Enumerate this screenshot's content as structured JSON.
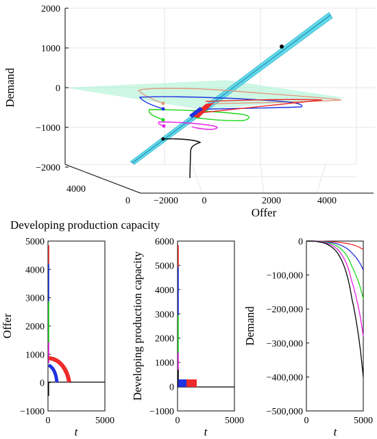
{
  "chart_data": [
    {
      "type": "line3d",
      "xlabel": "Offer",
      "ylabel": "",
      "zlabel": "Demand",
      "xlim": [
        -2000,
        4000
      ],
      "ylim": [
        0,
        4000
      ],
      "zlim": [
        -2000,
        2000
      ],
      "x_ticks": [
        "−2000",
        "0",
        "2000",
        "4000"
      ],
      "y_ticks": [
        "4000",
        "0"
      ],
      "z_ticks": [
        "2000",
        "1000",
        "0",
        "−1000",
        "−2000"
      ],
      "grid": true,
      "colors": {
        "plane": "#a6f0cf",
        "ribbon": "#5fd9ee",
        "red": "#ee2b2b",
        "blue": "#1f33e0",
        "green": "#1ad81a",
        "magenta": "#e81ee8",
        "black": "#000000",
        "salmon": "#e09a80"
      }
    },
    {
      "type": "line",
      "title": "Developing production capacity",
      "xlabel": "t",
      "ylabel": "Offer",
      "xlim": [
        0,
        5000
      ],
      "ylim": [
        -1000,
        5000
      ],
      "x_ticks": [
        "0",
        "5000"
      ],
      "y_ticks": [
        "5000",
        "4000",
        "3000",
        "2000",
        "1000",
        "0",
        "−1000"
      ]
    },
    {
      "type": "line",
      "xlabel": "t",
      "ylabel": "Developing production capacity",
      "xlim": [
        0,
        5000
      ],
      "ylim": [
        -1000,
        6000
      ],
      "x_ticks": [
        "0",
        "5000"
      ],
      "y_ticks": [
        "6000",
        "5000",
        "4000",
        "3000",
        "2000",
        "1000",
        "0",
        "−1000"
      ]
    },
    {
      "type": "line",
      "xlabel": "t",
      "ylabel": "Demand",
      "xlim": [
        0,
        5000
      ],
      "ylim": [
        -500000,
        0
      ],
      "x_ticks": [
        "0",
        "5000"
      ],
      "y_ticks": [
        "0",
        "−100,000",
        "−200,000",
        "−300,000",
        "−400,000",
        "−500,000"
      ],
      "series": [
        {
          "color": "#ee2b2b",
          "x": [
            0,
            1000,
            2000,
            3000,
            4000,
            5000
          ],
          "y": [
            0,
            -300,
            -1500,
            -4500,
            -10000,
            -25000
          ]
        },
        {
          "color": "#1f33e0",
          "x": [
            0,
            1000,
            2000,
            3000,
            4000,
            5000
          ],
          "y": [
            0,
            -600,
            -3500,
            -12000,
            -35000,
            -85000
          ]
        },
        {
          "color": "#1ad81a",
          "x": [
            0,
            1000,
            2000,
            3000,
            4000,
            5000
          ],
          "y": [
            0,
            -1000,
            -6000,
            -22000,
            -75000,
            -170000
          ]
        },
        {
          "color": "#e81ee8",
          "x": [
            0,
            1000,
            2000,
            3000,
            4000,
            5000
          ],
          "y": [
            0,
            -1500,
            -9000,
            -35000,
            -120000,
            -280000
          ]
        },
        {
          "color": "#000000",
          "x": [
            0,
            1000,
            2000,
            3000,
            4000,
            5000
          ],
          "y": [
            0,
            -2000,
            -13000,
            -50000,
            -170000,
            -400000
          ]
        }
      ]
    }
  ]
}
